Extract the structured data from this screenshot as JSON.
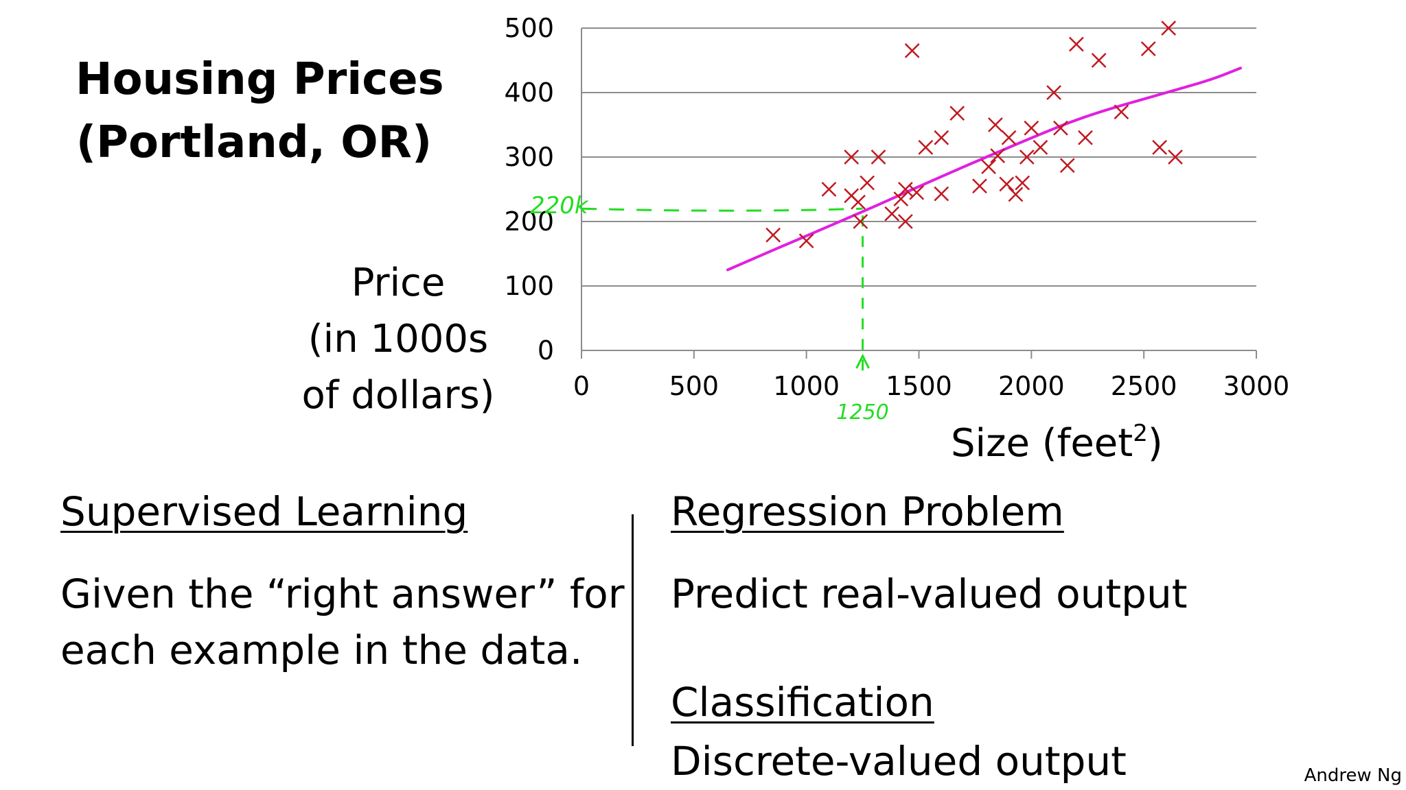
{
  "title": {
    "line1": "Housing Prices",
    "line2": "(Portland, OR)"
  },
  "author": "Andrew Ng",
  "left_column": {
    "heading": "Supervised Learning",
    "body_line1": "Given the “right answer” for",
    "body_line2": "each example in the data."
  },
  "right_column": {
    "heading1": "Regression Problem",
    "body1": "Predict real-valued output",
    "heading2": "Classification",
    "body2": "Discrete-valued output"
  },
  "chart_data": {
    "type": "scatter",
    "title": "",
    "xlabel": "Size (feet",
    "xlabel_sup": "2",
    "xlabel_end": ")",
    "ylabel_lines": [
      "Price",
      "(in 1000s",
      "of dollars)"
    ],
    "xlim": [
      0,
      3000
    ],
    "ylim": [
      0,
      500
    ],
    "xticks": [
      0,
      500,
      1000,
      1500,
      2000,
      2500,
      3000
    ],
    "yticks": [
      0,
      100,
      200,
      300,
      400,
      500
    ],
    "grid": "horizontal",
    "legend": "none",
    "marker": "x",
    "marker_color": "#c0181f",
    "series": [
      {
        "points": [
          [
            852,
            179
          ],
          [
            1000,
            170
          ],
          [
            1100,
            250
          ],
          [
            1200,
            300
          ],
          [
            1200,
            240
          ],
          [
            1230,
            230
          ],
          [
            1240,
            200
          ],
          [
            1270,
            260
          ],
          [
            1320,
            300
          ],
          [
            1380,
            212
          ],
          [
            1420,
            235
          ],
          [
            1440,
            200
          ],
          [
            1440,
            250
          ],
          [
            1470,
            465
          ],
          [
            1490,
            245
          ],
          [
            1530,
            315
          ],
          [
            1600,
            330
          ],
          [
            1600,
            243
          ],
          [
            1670,
            368
          ],
          [
            1770,
            255
          ],
          [
            1810,
            285
          ],
          [
            1840,
            350
          ],
          [
            1850,
            302
          ],
          [
            1900,
            330
          ],
          [
            1890,
            258
          ],
          [
            1930,
            242
          ],
          [
            1960,
            260
          ],
          [
            1980,
            300
          ],
          [
            2000,
            345
          ],
          [
            2040,
            315
          ],
          [
            2100,
            400
          ],
          [
            2130,
            345
          ],
          [
            2160,
            287
          ],
          [
            2200,
            475
          ],
          [
            2240,
            330
          ],
          [
            2300,
            450
          ],
          [
            2400,
            370
          ],
          [
            2520,
            468
          ],
          [
            2570,
            315
          ],
          [
            2610,
            500
          ],
          [
            2640,
            300
          ]
        ]
      }
    ],
    "fit_curve": {
      "color": "#e020e0",
      "points": [
        [
          650,
          125
        ],
        [
          1000,
          178
        ],
        [
          1250,
          215
        ],
        [
          1600,
          270
        ],
        [
          2000,
          330
        ],
        [
          2250,
          365
        ],
        [
          2600,
          400
        ],
        [
          2800,
          420
        ],
        [
          2930,
          438
        ]
      ]
    },
    "annotation": {
      "color": "#22dd22",
      "x_value": 1250,
      "y_value": 220,
      "x_label": "1250",
      "y_label": "220k"
    }
  }
}
